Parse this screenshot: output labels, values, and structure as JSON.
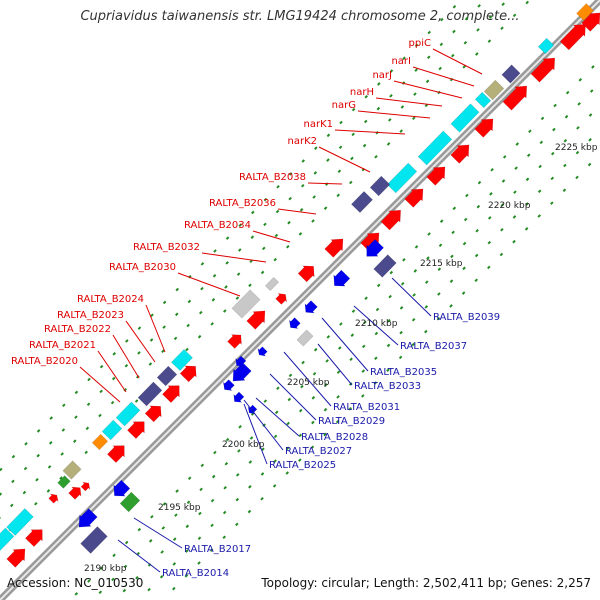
{
  "header": {
    "title": "Cupriavidus taiwanensis str. LMG19424 chromosome 2, complete..."
  },
  "footer": {
    "accession": "Accession: NC_010530",
    "topology": "Topology: circular; Length: 2,502,411 bp; Genes: 2,257"
  },
  "colors": {
    "red": "#ff0000",
    "blue": "#0000ee",
    "cyan": "#00e5ee",
    "slate": "#4a4a8c",
    "khaki": "#b5b07a",
    "orange": "#ff8c00",
    "green": "#2e9e2e",
    "grey": "#c8c8c8",
    "tick": "#228b22",
    "red_label": "#dd0000",
    "blue_label": "#1a1aaa",
    "backbone": "#9a9a9a"
  },
  "scale_labels": [
    "2190 kbp",
    "2195 kbp",
    "2200 kbp",
    "2205 kbp",
    "2210 kbp",
    "2215 kbp",
    "2220 kbp",
    "2225 kbp"
  ],
  "labels_upper": [
    "ppiC",
    "narI",
    "narJ",
    "narH",
    "narG",
    "narK1",
    "narK2",
    "RALTA_B2038",
    "RALTA_B2036",
    "RALTA_B2034",
    "RALTA_B2032",
    "RALTA_B2030",
    "RALTA_B2024",
    "RALTA_B2023",
    "RALTA_B2022",
    "RALTA_B2021",
    "RALTA_B2020"
  ],
  "labels_lower": [
    "RALTA_B2039",
    "RALTA_B2037",
    "RALTA_B2035",
    "RALTA_B2033",
    "RALTA_B2031",
    "RALTA_B2029",
    "RALTA_B2028",
    "RALTA_B2027",
    "RALTA_B2025",
    "RALTA_B2017",
    "RALTA_B2014"
  ]
}
